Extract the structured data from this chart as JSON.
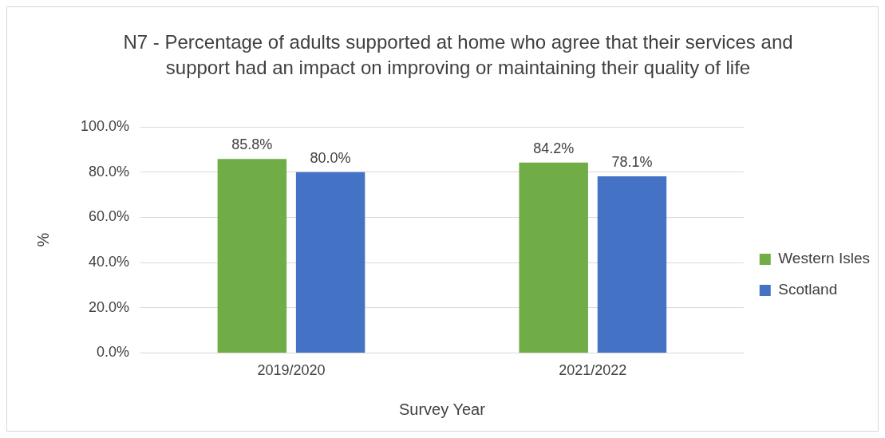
{
  "chart_data": {
    "type": "bar",
    "title": "N7 - Percentage of adults supported at home who agree that their services and support had an impact on improving or maintaining their quality of life",
    "xlabel": "Survey Year",
    "ylabel": "%",
    "categories": [
      "2019/2020",
      "2021/2022"
    ],
    "series": [
      {
        "name": "Western Isles",
        "color": "#70ad47",
        "values": [
          85.8,
          84.2
        ],
        "value_labels": [
          "85.8%",
          "84.2%"
        ]
      },
      {
        "name": "Scotland",
        "color": "#4472c4",
        "values": [
          80.0,
          78.1
        ],
        "value_labels": [
          "80.0%",
          "78.1%"
        ]
      }
    ],
    "ylim": [
      0,
      100
    ],
    "yticks": [
      {
        "value": 0,
        "label": "0.0%"
      },
      {
        "value": 20,
        "label": "20.0%"
      },
      {
        "value": 40,
        "label": "40.0%"
      },
      {
        "value": 60,
        "label": "60.0%"
      },
      {
        "value": 80,
        "label": "80.0%"
      },
      {
        "value": 100,
        "label": "100.0%"
      }
    ],
    "grid": "y",
    "legend": "right"
  }
}
